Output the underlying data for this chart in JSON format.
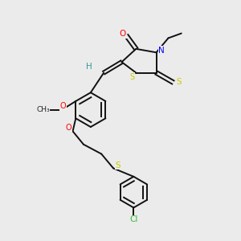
{
  "background_color": "#ebebeb",
  "fig_width": 3.0,
  "fig_height": 3.0,
  "dpi": 100,
  "colors": {
    "O": "#ff0000",
    "N": "#0000ff",
    "S": "#cccc00",
    "Cl": "#33bb33",
    "H": "#339999",
    "C": "#111111",
    "bond": "#111111"
  }
}
